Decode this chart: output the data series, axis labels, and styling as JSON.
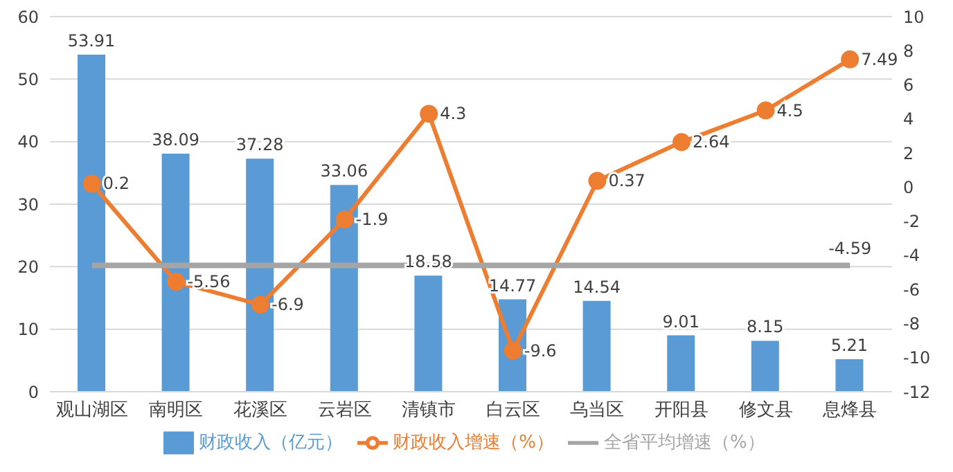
{
  "chart_data": {
    "type": "bar",
    "categories": [
      "观山湖区",
      "南明区",
      "花溪区",
      "云岩区",
      "清镇市",
      "白云区",
      "乌当区",
      "开阳县",
      "修文县",
      "息烽县"
    ],
    "series": [
      {
        "name": "财政收入（亿元）",
        "color": "#5b9bd5",
        "values": [
          53.91,
          38.09,
          37.28,
          33.06,
          18.58,
          14.77,
          14.54,
          9.01,
          8.15,
          5.21
        ]
      },
      {
        "name": "财政收入增速（%）",
        "type": "line",
        "axis": "y2",
        "color": "#ed7d31",
        "marker": "circle",
        "values": [
          0.2,
          -5.56,
          -6.9,
          -1.9,
          4.3,
          -9.6,
          0.37,
          2.64,
          4.5,
          7.49
        ]
      },
      {
        "name": "全省平均增速（%）",
        "type": "line",
        "axis": "y2",
        "color": "#a5a5a5",
        "marker": "none",
        "values": [
          -4.59,
          -4.59,
          -4.59,
          -4.59,
          -4.59,
          -4.59,
          -4.59,
          -4.59,
          -4.59,
          -4.59
        ],
        "value_labels": [
          null,
          null,
          null,
          null,
          null,
          null,
          null,
          null,
          null,
          "-4.59"
        ]
      }
    ],
    "ylim": [
      0,
      60
    ],
    "yticks": [
      0,
      10,
      20,
      30,
      40,
      50,
      60
    ],
    "y2lim": [
      -12,
      10
    ],
    "y2ticks": [
      -12,
      -10,
      -8,
      -6,
      -4,
      -2,
      0,
      2,
      4,
      6,
      8,
      10
    ],
    "grid": "y",
    "legend": "bottom",
    "data_labels": true
  }
}
